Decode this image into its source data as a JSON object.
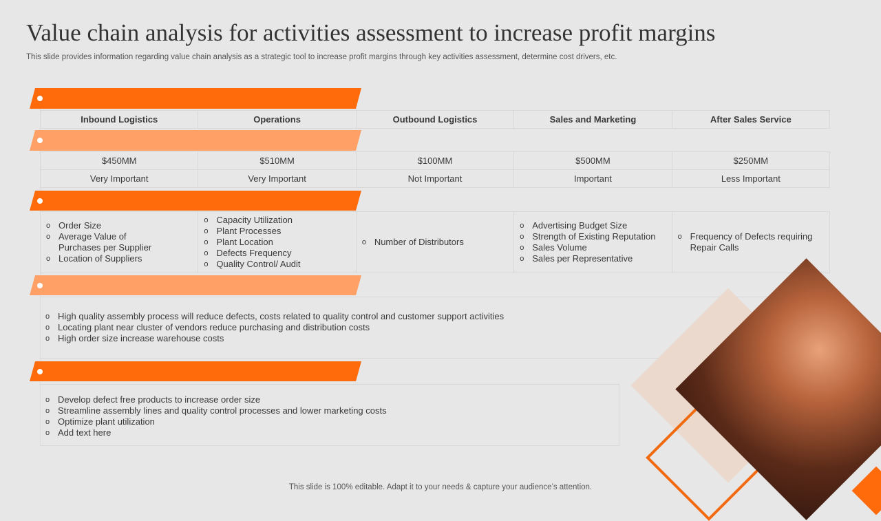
{
  "title": "Value chain analysis for activities assessment to increase profit margins",
  "subtitle": "This slide provides information regarding value chain analysis as a strategic tool to increase profit margins through key activities assessment, determine cost drivers, etc.",
  "columns": [
    "Inbound Logistics",
    "Operations",
    "Outbound Logistics",
    "Sales and Marketing",
    "After Sales Service"
  ],
  "costs": [
    "$450MM",
    "$510MM",
    "$100MM",
    "$500MM",
    "$250MM"
  ],
  "importance": [
    "Very Important",
    "Very Important",
    "Not Important",
    "Important",
    "Less Important"
  ],
  "drivers": [
    [
      "Order Size",
      "Average Value of Purchases per Supplier",
      "Location of Suppliers"
    ],
    [
      "Capacity Utilization",
      "Plant Processes",
      "Plant Location",
      "Defects Frequency",
      "Quality Control/ Audit"
    ],
    [
      "Number of Distributors"
    ],
    [
      "Advertising Budget Size",
      "Strength of Existing Reputation",
      "Sales Volume",
      "Sales per Representative"
    ],
    [
      "Frequency of Defects requiring Repair Calls"
    ]
  ],
  "insights": [
    "High quality assembly process will reduce defects, costs related to quality control and customer support activities",
    "Locating plant near cluster of vendors reduce purchasing and distribution costs",
    "High order size increase warehouse costs"
  ],
  "actions": [
    "Develop defect free products to increase order size",
    "Streamline assembly lines and quality control processes and lower marketing costs",
    "Optimize plant utilization",
    "Add text here"
  ],
  "footer": "This slide is 100% editable. Adapt it to your needs & capture your audience’s attention.",
  "colors": {
    "accent": "#ff6a0a",
    "accent_light": "#ffa066"
  }
}
